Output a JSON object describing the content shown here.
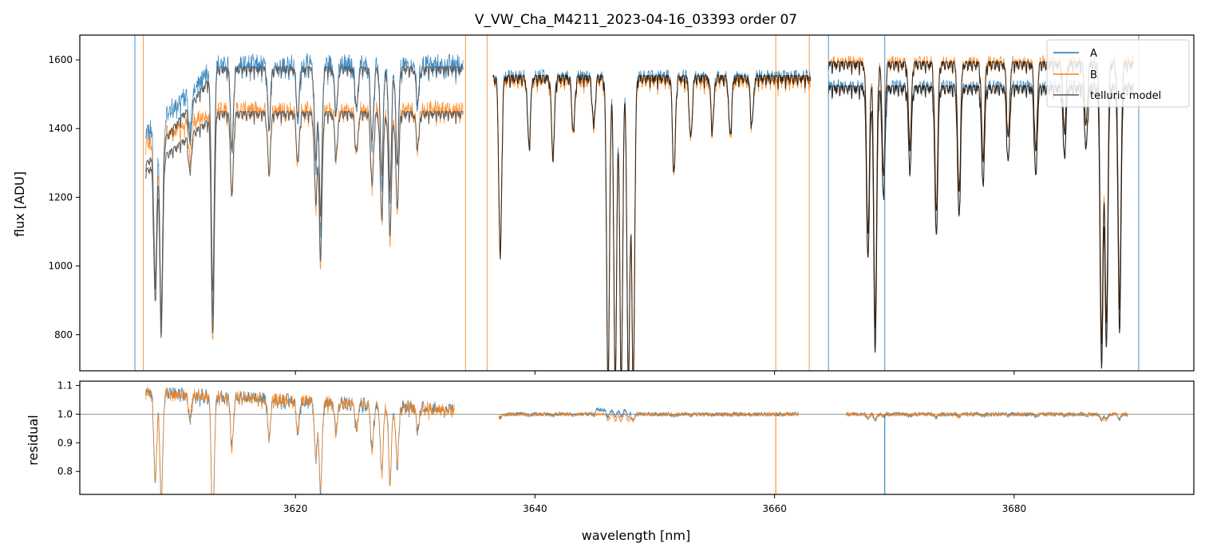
{
  "chart_data": [
    {
      "type": "line",
      "title": "V_VW_Cha_M4211_2023-04-16_03393  order 07",
      "ylabel": "flux [ADU]",
      "xlabel": "",
      "xlim": [
        3602,
        3695
      ],
      "ylim": [
        695,
        1672
      ],
      "x_ticks": [
        3620,
        3640,
        3660,
        3680
      ],
      "y_ticks": [
        800,
        1000,
        1200,
        1400,
        1600
      ],
      "legend": {
        "position": "top-right",
        "entries": [
          {
            "label": "A",
            "color": "#1f77b4"
          },
          {
            "label": "B",
            "color": "#ff7f0e"
          },
          {
            "label": "telluric model",
            "color": "#555555"
          }
        ]
      },
      "segments": [
        {
          "x_start": 3607.5,
          "x_end": 3634.0,
          "A_level": 1590,
          "B_level": 1460,
          "model_upper": 1580,
          "model_lower": 1450
        },
        {
          "x_start": 3636.5,
          "x_end": 3663.0,
          "A_level": 1560,
          "B_level": 1545,
          "model": 1555
        },
        {
          "x_start": 3664.5,
          "x_end": 3690.0,
          "A_level": 1530,
          "B_level": 1600,
          "model_A": 1525,
          "model_B": 1595
        }
      ],
      "absorption_lines": [
        {
          "x": 3608.3,
          "depth": 450
        },
        {
          "x": 3608.8,
          "depth": 560
        },
        {
          "x": 3611.2,
          "depth": 120
        },
        {
          "x": 3613.1,
          "depth": 700
        },
        {
          "x": 3614.7,
          "depth": 260
        },
        {
          "x": 3617.8,
          "depth": 190
        },
        {
          "x": 3620.2,
          "depth": 160
        },
        {
          "x": 3621.7,
          "depth": 280
        },
        {
          "x": 3622.1,
          "depth": 460
        },
        {
          "x": 3623.4,
          "depth": 140
        },
        {
          "x": 3625.1,
          "depth": 130
        },
        {
          "x": 3626.4,
          "depth": 230
        },
        {
          "x": 3627.2,
          "depth": 330
        },
        {
          "x": 3627.9,
          "depth": 380
        },
        {
          "x": 3628.5,
          "depth": 300
        },
        {
          "x": 3630.2,
          "depth": 110
        },
        {
          "x": 3637.1,
          "depth": 520
        },
        {
          "x": 3639.5,
          "depth": 200
        },
        {
          "x": 3641.5,
          "depth": 230
        },
        {
          "x": 3643.2,
          "depth": 160
        },
        {
          "x": 3644.9,
          "depth": 140
        },
        {
          "x": 3646.1,
          "depth": 900
        },
        {
          "x": 3646.7,
          "depth": 900
        },
        {
          "x": 3647.2,
          "depth": 900
        },
        {
          "x": 3647.8,
          "depth": 900
        },
        {
          "x": 3648.2,
          "depth": 900
        },
        {
          "x": 3651.6,
          "depth": 280
        },
        {
          "x": 3653.0,
          "depth": 180
        },
        {
          "x": 3654.8,
          "depth": 150
        },
        {
          "x": 3656.3,
          "depth": 170
        },
        {
          "x": 3658.1,
          "depth": 140
        },
        {
          "x": 3667.8,
          "depth": 500
        },
        {
          "x": 3668.4,
          "depth": 760
        },
        {
          "x": 3669.1,
          "depth": 320
        },
        {
          "x": 3671.3,
          "depth": 240
        },
        {
          "x": 3673.5,
          "depth": 430
        },
        {
          "x": 3675.4,
          "depth": 380
        },
        {
          "x": 3677.4,
          "depth": 280
        },
        {
          "x": 3679.5,
          "depth": 220
        },
        {
          "x": 3681.8,
          "depth": 260
        },
        {
          "x": 3684.2,
          "depth": 200
        },
        {
          "x": 3686.0,
          "depth": 180
        },
        {
          "x": 3687.3,
          "depth": 820
        },
        {
          "x": 3687.7,
          "depth": 760
        },
        {
          "x": 3688.8,
          "depth": 700
        }
      ]
    },
    {
      "type": "line",
      "title": "",
      "ylabel": "residual",
      "xlabel": "wavelength [nm]",
      "xlim": [
        3602,
        3695
      ],
      "ylim": [
        0.72,
        1.115
      ],
      "x_ticks": [
        3620,
        3640,
        3660,
        3680
      ],
      "y_ticks": [
        0.8,
        0.9,
        1.0,
        1.1
      ],
      "reference_line": 1.0,
      "segments": [
        {
          "x_start": 3607.5,
          "x_end": 3633.3,
          "level_start": 1.08,
          "level_end": 1.02
        },
        {
          "x_start": 3637.0,
          "x_end": 3662.0,
          "level_start": 1.0,
          "level_end": 1.0
        },
        {
          "x_start": 3666.0,
          "x_end": 3689.5,
          "level_start": 1.0,
          "level_end": 1.0
        }
      ]
    }
  ],
  "colors": {
    "A": "#1f77b4",
    "B": "#ff7f0e",
    "model": "#3a3a3a",
    "overlap": "#2a1a0c"
  }
}
